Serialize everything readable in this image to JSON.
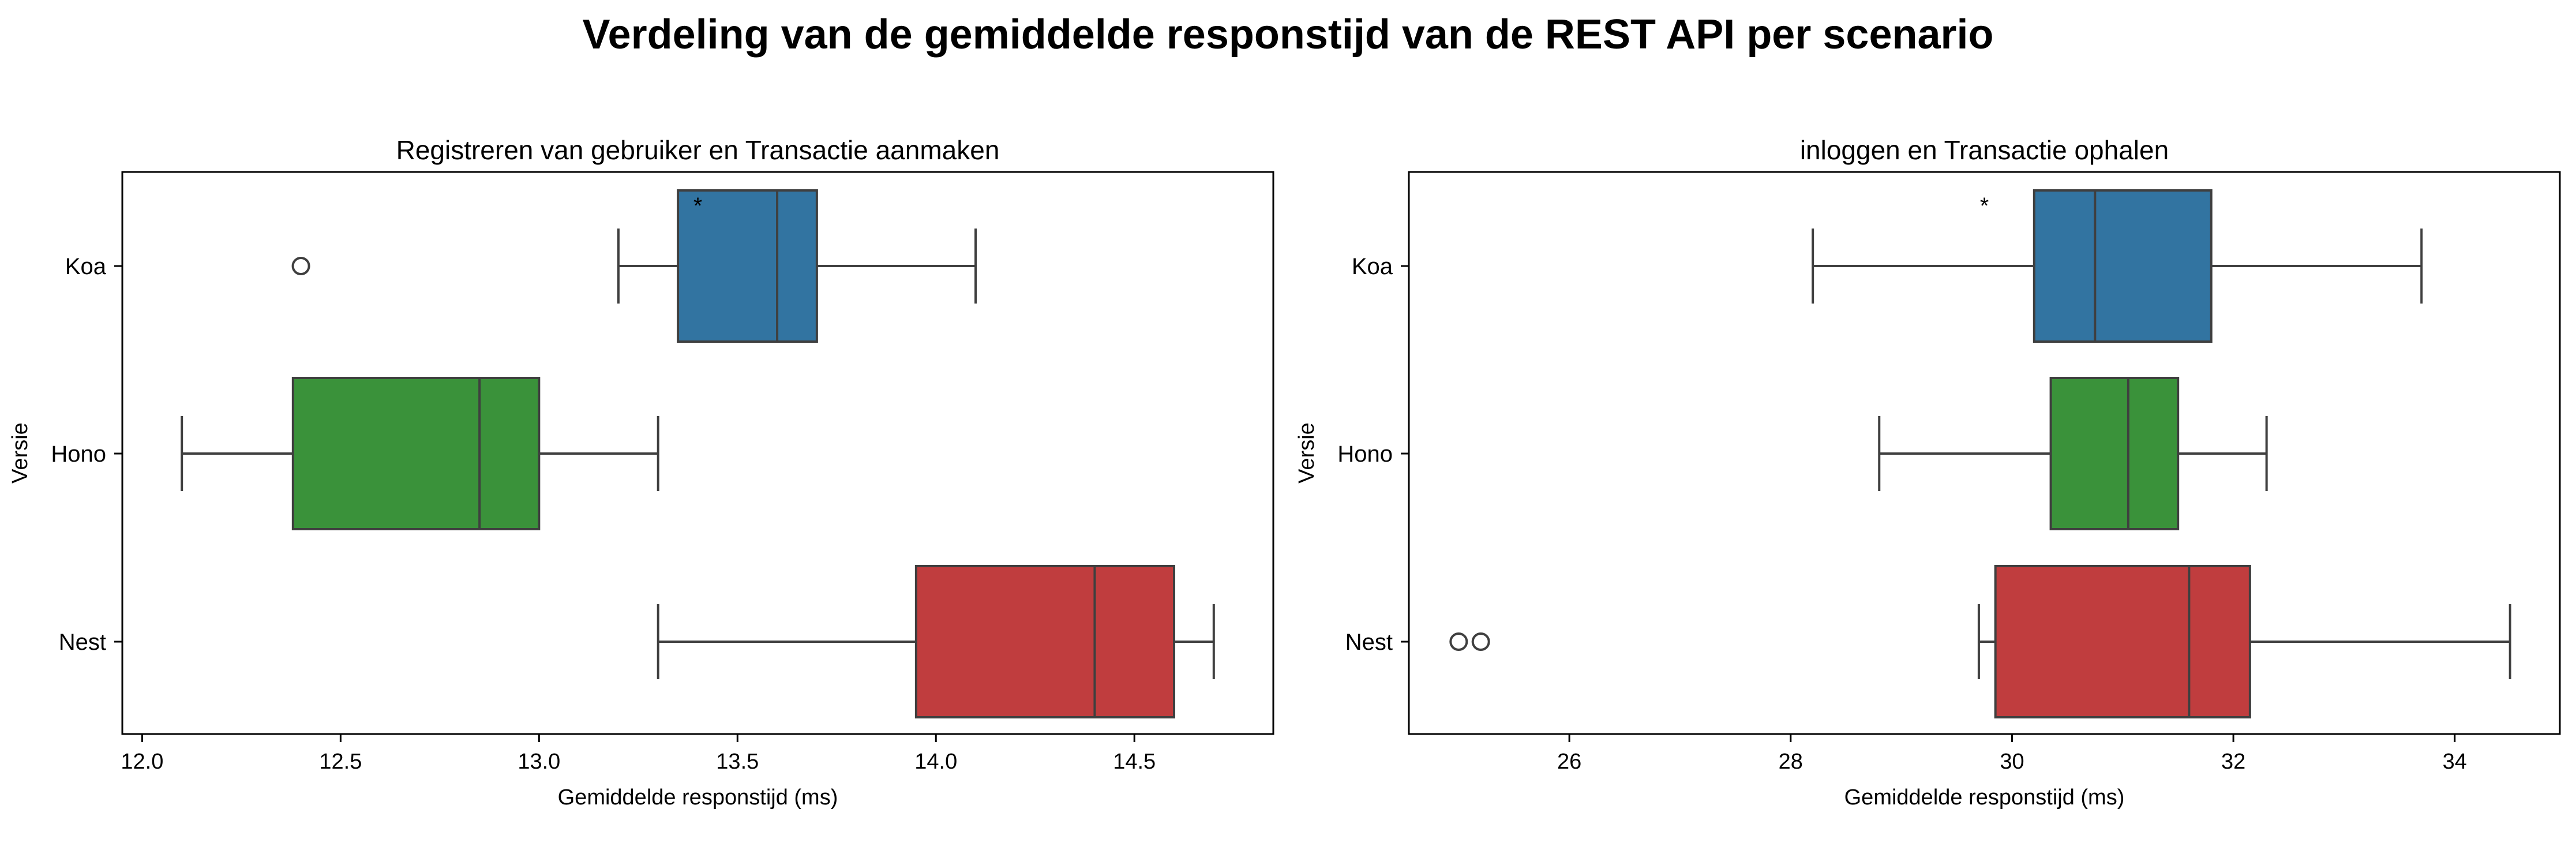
{
  "suptitle": "Verdeling van de gemiddelde responstijd van de REST API per scenario",
  "chart_data": [
    {
      "type": "box",
      "orientation": "horizontal",
      "title": "Registreren van gebruiker en Transactie aanmaken",
      "xlabel": "Gemiddelde responstijd (ms)",
      "ylabel": "Versie",
      "xlim": [
        11.95,
        14.85
      ],
      "xticks": [
        12.0,
        12.5,
        13.0,
        13.5,
        14.0,
        14.5
      ],
      "xtick_labels": [
        "12.0",
        "12.5",
        "13.0",
        "13.5",
        "14.0",
        "14.5"
      ],
      "categories": [
        "Koa",
        "Hono",
        "Nest"
      ],
      "boxes": [
        {
          "name": "Koa",
          "color": "#3274a1",
          "whisker_low": 13.2,
          "q1": 13.35,
          "median": 13.6,
          "q3": 13.7,
          "whisker_high": 14.1,
          "outliers": [
            12.4
          ]
        },
        {
          "name": "Hono",
          "color": "#3a923a",
          "whisker_low": 12.1,
          "q1": 12.38,
          "median": 12.85,
          "q3": 13.0,
          "whisker_high": 13.3,
          "outliers": []
        },
        {
          "name": "Nest",
          "color": "#c03d3e",
          "whisker_low": 13.3,
          "q1": 13.95,
          "median": 14.4,
          "q3": 14.6,
          "whisker_high": 14.7,
          "outliers": []
        }
      ],
      "annotations": [
        {
          "text": "*",
          "x": 13.4,
          "category": "Koa"
        }
      ]
    },
    {
      "type": "box",
      "orientation": "horizontal",
      "title": "inloggen en Transactie ophalen",
      "xlabel": "Gemiddelde responstijd (ms)",
      "ylabel": "Versie",
      "xlim": [
        24.55,
        34.95
      ],
      "xticks": [
        26,
        28,
        30,
        32,
        34
      ],
      "xtick_labels": [
        "26",
        "28",
        "30",
        "32",
        "34"
      ],
      "categories": [
        "Koa",
        "Hono",
        "Nest"
      ],
      "boxes": [
        {
          "name": "Koa",
          "color": "#3274a1",
          "whisker_low": 28.2,
          "q1": 30.2,
          "median": 30.75,
          "q3": 31.8,
          "whisker_high": 33.7,
          "outliers": []
        },
        {
          "name": "Hono",
          "color": "#3a923a",
          "whisker_low": 28.8,
          "q1": 30.35,
          "median": 31.05,
          "q3": 31.5,
          "whisker_high": 32.3,
          "outliers": []
        },
        {
          "name": "Nest",
          "color": "#c03d3e",
          "whisker_low": 29.7,
          "q1": 29.85,
          "median": 31.6,
          "q3": 32.15,
          "whisker_high": 34.5,
          "outliers": [
            25.0,
            25.2
          ]
        }
      ],
      "annotations": [
        {
          "text": "*",
          "x": 29.75,
          "category": "Koa"
        }
      ]
    }
  ]
}
